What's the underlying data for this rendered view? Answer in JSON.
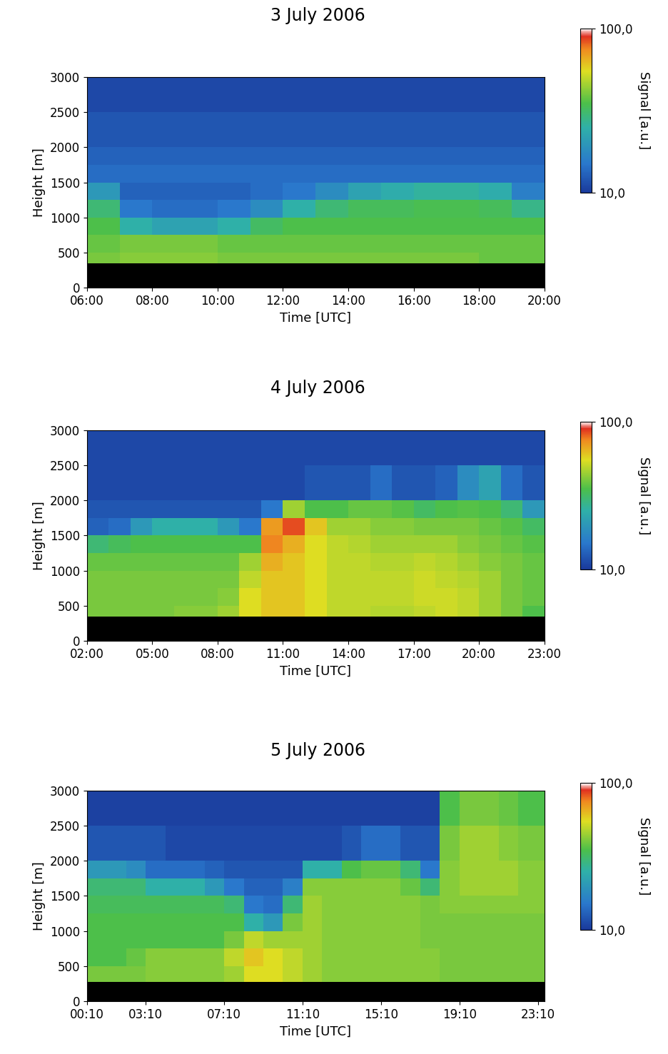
{
  "chart_data": [
    {
      "type": "heatmap",
      "title": "3 July 2006",
      "x_label": "Time [UTC]",
      "y_label": "Height [m]",
      "xlim": [
        6,
        20
      ],
      "xticks": [
        {
          "value": 6,
          "label": "06:00"
        },
        {
          "value": 8,
          "label": "08:00"
        },
        {
          "value": 10,
          "label": "10:00"
        },
        {
          "value": 12,
          "label": "12:00"
        },
        {
          "value": 14,
          "label": "14:00"
        },
        {
          "value": 16,
          "label": "16:00"
        },
        {
          "value": 18,
          "label": "18:00"
        },
        {
          "value": 20,
          "label": "20:00"
        }
      ],
      "ylim": [
        0,
        3000
      ],
      "yticks": [
        0,
        500,
        1000,
        1500,
        2000,
        2500,
        3000
      ],
      "x_edges": [
        6,
        7,
        8,
        9,
        10,
        11,
        12,
        13,
        14,
        15,
        16,
        17,
        18,
        19,
        20
      ],
      "y_edges": [
        0,
        350,
        500,
        750,
        1000,
        1250,
        1500,
        1750,
        2000,
        2500,
        3000
      ],
      "cells": [
        [
          null,
          null,
          null,
          null,
          null,
          null,
          null,
          null,
          null,
          null,
          null,
          null,
          null,
          null
        ],
        [
          40,
          42,
          42,
          42,
          40,
          40,
          40,
          40,
          40,
          40,
          40,
          40,
          38,
          38
        ],
        [
          38,
          40,
          40,
          40,
          38,
          38,
          38,
          38,
          38,
          38,
          38,
          38,
          38,
          38
        ],
        [
          35,
          25,
          22,
          22,
          25,
          32,
          35,
          35,
          35,
          35,
          35,
          35,
          35,
          35
        ],
        [
          30,
          15,
          14,
          14,
          15,
          18,
          25,
          30,
          33,
          33,
          34,
          34,
          33,
          28
        ],
        [
          20,
          13,
          13,
          13,
          13,
          14,
          15,
          18,
          22,
          24,
          26,
          26,
          24,
          16
        ],
        [
          14,
          14,
          14,
          14,
          14,
          14,
          14,
          14,
          14,
          14,
          14,
          14,
          14,
          14
        ],
        [
          13,
          13,
          13,
          13,
          13,
          13,
          13,
          13,
          13,
          13,
          13,
          13,
          13,
          13
        ],
        [
          12,
          12,
          12,
          12,
          12,
          12,
          12,
          12,
          12,
          12,
          12,
          12,
          12,
          12
        ],
        [
          11,
          11,
          11,
          11,
          11,
          11,
          11,
          11,
          11,
          11,
          11,
          11,
          11,
          11
        ]
      ],
      "colorbar": {
        "label": "Signal [a.u.]",
        "range": [
          10,
          100
        ],
        "ticks": [
          {
            "value": 10,
            "label": "10,0"
          },
          {
            "value": 100,
            "label": "100,0"
          }
        ]
      }
    },
    {
      "type": "heatmap",
      "title": "4 July 2006",
      "x_label": "Time [UTC]",
      "y_label": "Height [m]",
      "xlim": [
        2,
        23
      ],
      "xticks": [
        {
          "value": 2,
          "label": "02:00"
        },
        {
          "value": 5,
          "label": "05:00"
        },
        {
          "value": 8,
          "label": "08:00"
        },
        {
          "value": 11,
          "label": "11:00"
        },
        {
          "value": 14,
          "label": "14:00"
        },
        {
          "value": 17,
          "label": "17:00"
        },
        {
          "value": 20,
          "label": "20:00"
        },
        {
          "value": 23,
          "label": "23:00"
        }
      ],
      "ylim": [
        0,
        3000
      ],
      "yticks": [
        0,
        500,
        1000,
        1500,
        2000,
        2500,
        3000
      ],
      "x_edges": [
        2,
        3,
        4,
        5,
        6,
        7,
        8,
        9,
        10,
        11,
        12,
        13,
        14,
        15,
        16,
        17,
        18,
        19,
        20,
        21,
        22,
        23
      ],
      "y_edges": [
        0,
        350,
        500,
        750,
        1000,
        1250,
        1500,
        1750,
        2000,
        2500,
        3000
      ],
      "cells": [
        [
          null,
          null,
          null,
          null,
          null,
          null,
          null,
          null,
          null,
          null,
          null,
          null,
          null,
          null,
          null,
          null,
          null,
          null,
          null,
          null,
          null
        ],
        [
          40,
          40,
          40,
          40,
          42,
          42,
          45,
          55,
          60,
          60,
          55,
          50,
          50,
          48,
          48,
          50,
          52,
          50,
          45,
          40,
          35
        ],
        [
          40,
          40,
          40,
          40,
          40,
          40,
          42,
          55,
          60,
          60,
          55,
          50,
          50,
          50,
          50,
          52,
          52,
          50,
          45,
          40,
          38
        ],
        [
          40,
          40,
          40,
          40,
          40,
          40,
          40,
          50,
          60,
          60,
          55,
          50,
          50,
          50,
          50,
          52,
          50,
          48,
          45,
          40,
          38
        ],
        [
          38,
          38,
          38,
          38,
          38,
          38,
          38,
          45,
          65,
          60,
          55,
          50,
          50,
          48,
          48,
          50,
          48,
          45,
          42,
          40,
          38
        ],
        [
          30,
          33,
          35,
          35,
          35,
          35,
          35,
          35,
          75,
          65,
          55,
          50,
          48,
          45,
          45,
          45,
          45,
          42,
          40,
          38,
          36
        ],
        [
          13,
          14,
          20,
          25,
          25,
          25,
          20,
          15,
          70,
          85,
          60,
          45,
          45,
          42,
          42,
          40,
          40,
          40,
          38,
          36,
          32
        ],
        [
          12,
          12,
          12,
          12,
          12,
          12,
          12,
          12,
          15,
          45,
          35,
          35,
          38,
          38,
          36,
          32,
          35,
          36,
          35,
          30,
          20
        ],
        [
          11,
          11,
          11,
          11,
          11,
          11,
          11,
          11,
          11,
          11,
          12,
          12,
          12,
          14,
          12,
          12,
          13,
          18,
          22,
          14,
          12
        ],
        [
          11,
          11,
          11,
          11,
          11,
          11,
          11,
          11,
          11,
          11,
          11,
          11,
          11,
          11,
          11,
          11,
          11,
          11,
          11,
          11,
          11
        ]
      ],
      "colorbar": {
        "label": "Signal [a.u.]",
        "range": [
          10,
          100
        ],
        "ticks": [
          {
            "value": 10,
            "label": "10,0"
          },
          {
            "value": 100,
            "label": "100,0"
          }
        ]
      }
    },
    {
      "type": "heatmap",
      "title": "5 July 2006",
      "x_label": "Time [UTC]",
      "y_label": "Height [m]",
      "xlim": [
        0.1667,
        23.5
      ],
      "xticks": [
        {
          "value": 0.1667,
          "label": "00:10"
        },
        {
          "value": 3.1667,
          "label": "03:10"
        },
        {
          "value": 7.1667,
          "label": "07:10"
        },
        {
          "value": 11.1667,
          "label": "11:10"
        },
        {
          "value": 15.1667,
          "label": "15:10"
        },
        {
          "value": 19.1667,
          "label": "19:10"
        },
        {
          "value": 23.1667,
          "label": "23:10"
        }
      ],
      "ylim": [
        0,
        3000
      ],
      "yticks": [
        0,
        500,
        1000,
        1500,
        2000,
        2500,
        3000
      ],
      "x_edges": [
        0.1667,
        1.1667,
        2.1667,
        3.1667,
        4.1667,
        5.1667,
        6.1667,
        7.1667,
        8.1667,
        9.1667,
        10.1667,
        11.1667,
        12.1667,
        13.1667,
        14.1667,
        15.1667,
        16.1667,
        17.1667,
        18.1667,
        19.1667,
        20.1667,
        21.1667,
        22.1667,
        23.5
      ],
      "y_edges": [
        0,
        280,
        500,
        750,
        1000,
        1250,
        1500,
        1750,
        2000,
        2500,
        3000
      ],
      "cells": [
        [
          null,
          null,
          null,
          null,
          null,
          null,
          null,
          null,
          null,
          null,
          null,
          null,
          null,
          null,
          null,
          null,
          null,
          null,
          null,
          null,
          null,
          null,
          null
        ],
        [
          40,
          40,
          40,
          42,
          42,
          42,
          42,
          45,
          55,
          55,
          50,
          45,
          42,
          42,
          42,
          42,
          42,
          42,
          40,
          40,
          40,
          40,
          40
        ],
        [
          35,
          35,
          38,
          42,
          42,
          42,
          42,
          50,
          60,
          55,
          50,
          45,
          42,
          42,
          42,
          42,
          42,
          42,
          40,
          40,
          40,
          40,
          40
        ],
        [
          35,
          35,
          35,
          35,
          35,
          35,
          35,
          40,
          50,
          45,
          45,
          45,
          42,
          42,
          42,
          42,
          42,
          40,
          40,
          40,
          40,
          40,
          40
        ],
        [
          35,
          35,
          35,
          35,
          35,
          35,
          35,
          35,
          25,
          20,
          40,
          45,
          42,
          42,
          42,
          42,
          42,
          40,
          40,
          40,
          40,
          40,
          40
        ],
        [
          33,
          33,
          33,
          33,
          33,
          33,
          33,
          30,
          15,
          14,
          30,
          45,
          42,
          42,
          42,
          42,
          42,
          40,
          42,
          42,
          42,
          42,
          42
        ],
        [
          30,
          30,
          30,
          25,
          25,
          25,
          20,
          15,
          13,
          13,
          16,
          42,
          42,
          42,
          42,
          42,
          38,
          30,
          42,
          45,
          45,
          45,
          42
        ],
        [
          20,
          20,
          18,
          14,
          14,
          14,
          13,
          12,
          12,
          12,
          12,
          25,
          25,
          35,
          38,
          38,
          30,
          15,
          42,
          45,
          45,
          45,
          42
        ],
        [
          12,
          12,
          12,
          12,
          11,
          11,
          11,
          11,
          11,
          11,
          11,
          11,
          11,
          12,
          14,
          14,
          12,
          12,
          40,
          45,
          45,
          42,
          40
        ],
        [
          10.5,
          10.5,
          10.5,
          10.5,
          10.5,
          10.5,
          10.5,
          10.5,
          10.5,
          10.5,
          10.5,
          10.5,
          10.5,
          10.5,
          10.5,
          10.5,
          10.5,
          10.5,
          35,
          40,
          40,
          38,
          35
        ]
      ],
      "colorbar": {
        "label": "Signal [a.u.]",
        "range": [
          10,
          100
        ],
        "ticks": [
          {
            "value": 10,
            "label": "10,0"
          },
          {
            "value": 100,
            "label": "100,0"
          }
        ]
      }
    }
  ]
}
